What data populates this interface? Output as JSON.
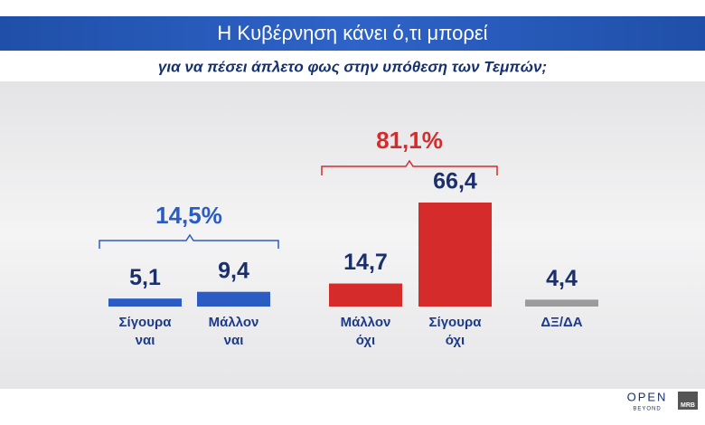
{
  "chart_data": {
    "type": "bar",
    "title": "Η Κυβέρνηση κάνει ό,τι μπορεί",
    "subtitle": "για να πέσει άπλετο φως στην υπόθεση των Τεμπών;",
    "categories": [
      "Σίγουρα\nναι",
      "Μάλλον\nναι",
      "Μάλλον\nόχι",
      "Σίγουρα\nόχι",
      "ΔΞ/ΔΑ"
    ],
    "values": [
      5.1,
      9.4,
      14.7,
      66.4,
      4.4
    ],
    "value_labels": [
      "5,1",
      "9,4",
      "14,7",
      "66,4",
      "4,4"
    ],
    "colors": [
      "#2a5cc4",
      "#2a5cc4",
      "#d62b2b",
      "#d62b2b",
      "#9b9b9b"
    ],
    "annotations": [
      "14,5%",
      "81,1%"
    ],
    "logos": [
      "OPEN",
      "BEYOND",
      "MRB"
    ]
  }
}
